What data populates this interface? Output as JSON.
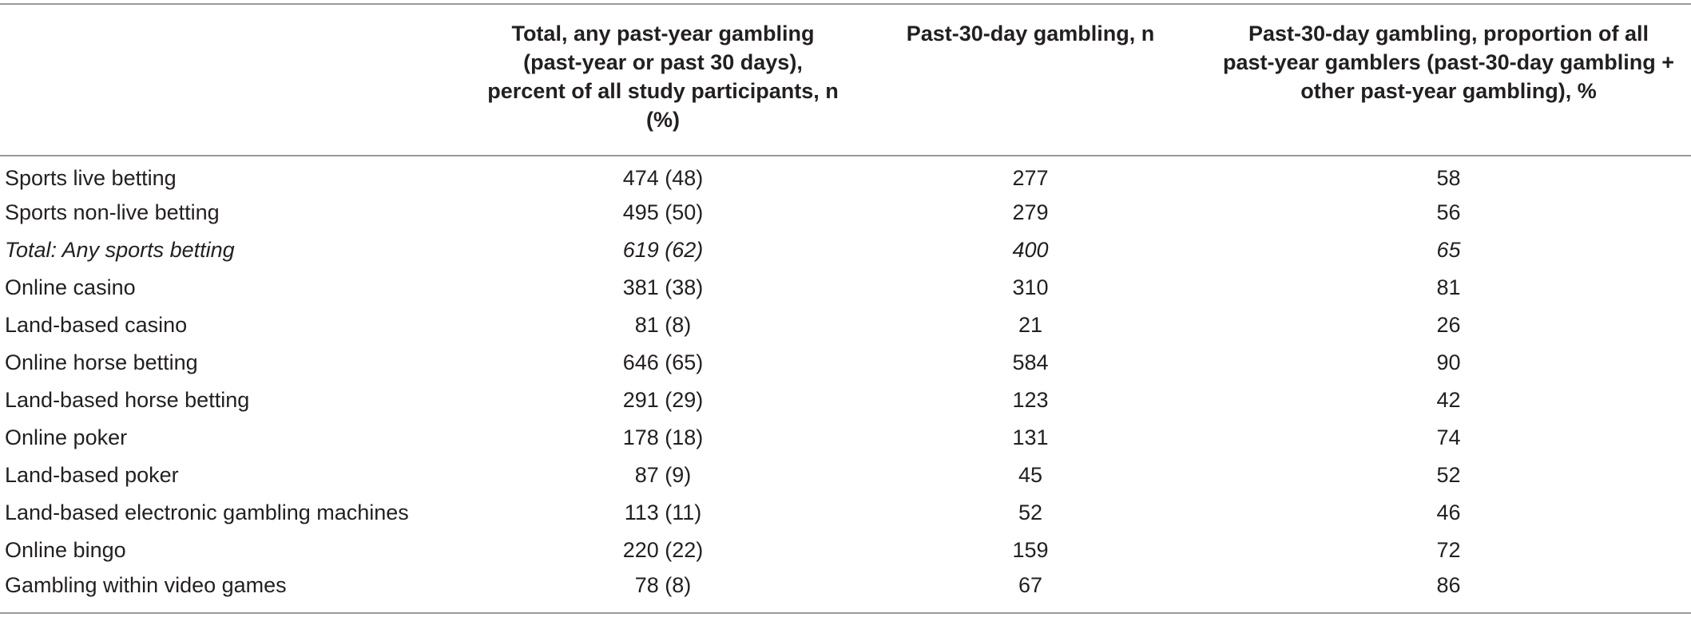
{
  "table": {
    "headers": [
      "",
      "Total, any past-year gambling (past-year or past 30 days), percent of all study participants, n (%)",
      "Past-30-day gambling, n",
      "Past-30-day gambling, proportion of all past-year gamblers (past-30-day gambling + other past-year gambling), %"
    ],
    "rows": [
      {
        "label": "Sports live betting",
        "total": "474 (48)",
        "past30": "277",
        "proportion": "58",
        "italic": false
      },
      {
        "label": "Sports non-live betting",
        "total": "495 (50)",
        "past30": "279",
        "proportion": "56",
        "italic": false
      },
      {
        "label": "Total: Any sports betting",
        "total": "619 (62)",
        "past30": "400",
        "proportion": "65",
        "italic": true
      },
      {
        "label": "Online casino",
        "total": "381 (38)",
        "past30": "310",
        "proportion": "81",
        "italic": false
      },
      {
        "label": "Land-based casino",
        "total": "81 (8)",
        "past30": "21",
        "proportion": "26",
        "italic": false
      },
      {
        "label": "Online horse betting",
        "total": "646 (65)",
        "past30": "584",
        "proportion": "90",
        "italic": false
      },
      {
        "label": "Land-based horse betting",
        "total": "291 (29)",
        "past30": "123",
        "proportion": "42",
        "italic": false
      },
      {
        "label": "Online poker",
        "total": "178 (18)",
        "past30": "131",
        "proportion": "74",
        "italic": false
      },
      {
        "label": "Land-based poker",
        "total": "87 (9)",
        "past30": "45",
        "proportion": "52",
        "italic": false
      },
      {
        "label": "Land-based electronic gambling machines",
        "total": "113 (11)",
        "past30": "52",
        "proportion": "46",
        "italic": false
      },
      {
        "label": "Online bingo",
        "total": "220 (22)",
        "past30": "159",
        "proportion": "72",
        "italic": false
      },
      {
        "label": "Gambling within video games",
        "total": "78 (8)",
        "past30": "67",
        "proportion": "86",
        "italic": false
      }
    ]
  }
}
